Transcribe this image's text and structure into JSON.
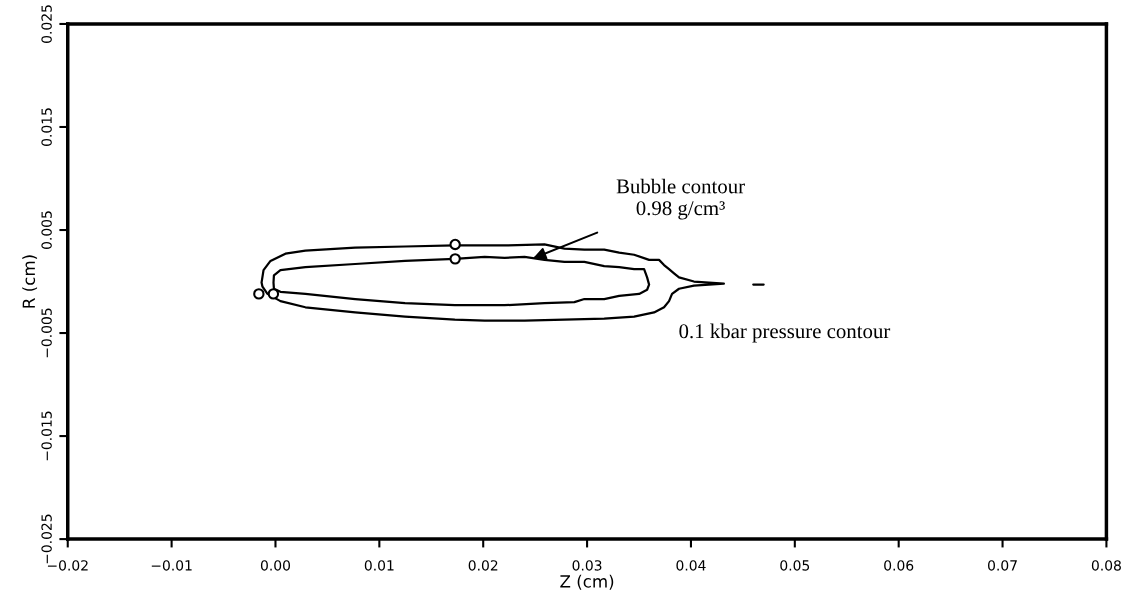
{
  "chart_data": {
    "type": "line",
    "xlabel": "Z (cm)",
    "ylabel": "R (cm)",
    "xlim": [
      -0.02,
      0.08
    ],
    "xticks": [
      {
        "value": -0.02,
        "label": "−0.02"
      },
      {
        "value": -0.01,
        "label": "−0.01"
      },
      {
        "value": 0,
        "label": "0.00"
      },
      0.01,
      0.02,
      0.03,
      0.04,
      0.05,
      0.06,
      0.07,
      0.08
    ],
    "ylim": [
      -0.025,
      0.025
    ],
    "yticks": [
      {
        "value": -0.025,
        "label": "−0.025"
      },
      {
        "value": -0.015,
        "label": "−0.015"
      },
      {
        "value": -0.005,
        "label": "−0.005"
      },
      0.005,
      0.015,
      0.025
    ],
    "grid": false,
    "legend": false,
    "series": [
      {
        "color": "#000000",
        "x": [
          -0.00134,
          -0.00115,
          -0.00048,
          0.00096,
          0.00288,
          0.00767,
          0.01247,
          0.01727,
          0.02206,
          0.0259,
          0.02782,
          0.02974,
          0.03165,
          0.03309,
          0.03453,
          0.03597,
          0.03693,
          0.03741,
          0.03789,
          0.03837,
          0.03885,
          0.04029,
          0.04317,
          null,
          -0.00134,
          -0.00125,
          -0.00077,
          0.00048,
          0.00288,
          0.00767,
          0.01247,
          0.01727,
          0.02014,
          0.02398,
          0.02782,
          0.03165,
          0.03453,
          0.03645,
          0.03741,
          0.03789,
          0.03818,
          0.03885,
          0.04029,
          0.04317
        ],
        "values": [
          -0.0001,
          0.0011,
          0.002,
          0.0027,
          0.003,
          0.0033,
          0.0034,
          0.0035,
          0.0035,
          0.0036,
          0.0032,
          0.0031,
          0.0031,
          0.0028,
          0.0026,
          0.0021,
          0.0021,
          0.0016,
          0.0012,
          0.0008,
          0.0004,
          0.0,
          -0.0002,
          null,
          -0.0001,
          -0.0005,
          -0.0012,
          -0.0019,
          -0.0025,
          -0.003,
          -0.0034,
          -0.0037,
          -0.0038,
          -0.0038,
          -0.0037,
          -0.0036,
          -0.0034,
          -0.003,
          -0.0025,
          -0.0019,
          -0.0012,
          -0.0007,
          -0.0004,
          -0.0002
        ]
      },
      {
        "color": "#000000",
        "x": [
          -0.00019,
          -0.00015,
          0.00048,
          0.00288,
          0.00767,
          0.01247,
          0.01727,
          0.02014,
          0.02206,
          0.02398,
          0.0259,
          0.02782,
          0.02974,
          0.03165,
          0.03309,
          0.03453,
          0.03549,
          0.03578,
          0.03597,
          null,
          -0.00019,
          -0.00015,
          0.00048,
          0.00288,
          0.00767,
          0.01247,
          0.01727,
          0.02206,
          0.0259,
          0.02878,
          0.02974,
          0.03165,
          0.03309,
          0.03501,
          0.03578,
          0.03597
        ],
        "values": [
          -0.0001,
          0.0006,
          0.0011,
          0.0014,
          0.0017,
          0.002,
          0.0022,
          0.0024,
          0.0023,
          0.0024,
          0.0021,
          0.0019,
          0.0019,
          0.0015,
          0.0014,
          0.0012,
          0.0012,
          0.0004,
          -0.0003,
          null,
          -0.0001,
          -0.0007,
          -0.001,
          -0.0012,
          -0.0017,
          -0.0021,
          -0.0023,
          -0.0023,
          -0.0021,
          -0.002,
          -0.0017,
          -0.0017,
          -0.0014,
          -0.0012,
          -0.0008,
          -0.0003
        ]
      },
      {
        "color": "#000000",
        "x": [
          0.046,
          0.047
        ],
        "values": [
          -0.0003,
          -0.0003
        ]
      },
      {
        "type": "scatter",
        "color": "#000000",
        "x": [
          -0.0016,
          -0.0002,
          0.0173,
          0.0173
        ],
        "values": [
          -0.0012,
          -0.0012,
          0.0036,
          0.0022
        ]
      }
    ],
    "annotations": [
      "Bubble contour\n0.98 g/cm³",
      "0.1 kbar pressure contour"
    ]
  }
}
